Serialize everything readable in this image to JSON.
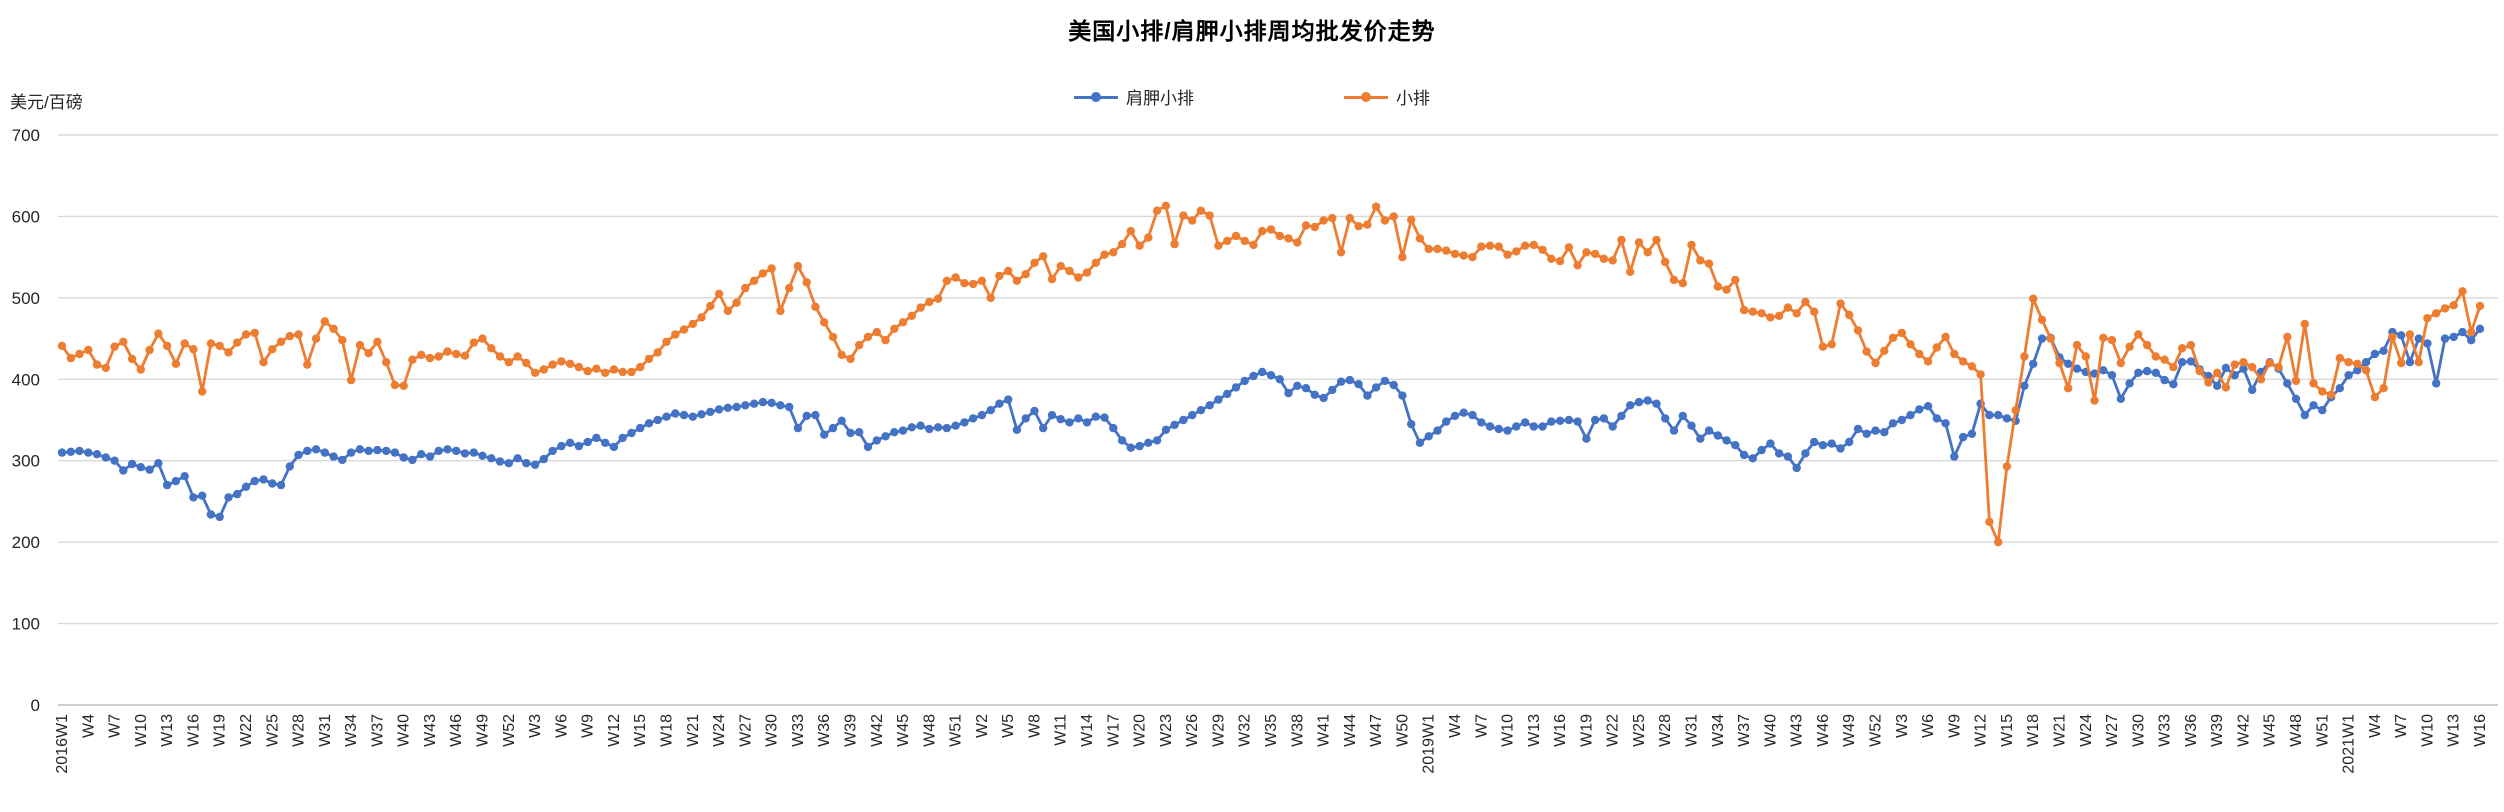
{
  "page": {
    "title": "美国小排/肩胛小排周均批发价走势",
    "unit_label": "美元/百磅"
  },
  "styles": {
    "series_blue": "#4472C4",
    "series_orange": "#ED7D31",
    "gridline": "#D9D9D9",
    "axis_line": "#BFBFBF",
    "label_text": "#262626",
    "title_text": "#000000"
  },
  "chart_data": {
    "type": "line",
    "title": "美国小排/肩胛小排周均批发价走势",
    "xlabel": "",
    "ylabel": "美元/百磅",
    "ylim": [
      0,
      700
    ],
    "y_ticks": [
      0,
      100,
      200,
      300,
      400,
      500,
      600,
      700
    ],
    "grid": true,
    "legend_position": "top-center",
    "x_label_every": 3,
    "x_labels": [
      "2016W1",
      "W4",
      "W7",
      "W10",
      "W13",
      "W16",
      "W19",
      "W22",
      "W25",
      "W28",
      "W31",
      "W34",
      "W37",
      "W40",
      "W43",
      "W46",
      "W49",
      "W52",
      "W3",
      "W6",
      "W9",
      "W12",
      "W15",
      "W18",
      "W21",
      "W24",
      "W27",
      "W30",
      "W33",
      "W36",
      "W39",
      "W42",
      "W45",
      "W48",
      "W51",
      "W2",
      "W5",
      "W8",
      "W11",
      "W14",
      "W17",
      "W20",
      "W23",
      "W26",
      "W29",
      "W32",
      "W35",
      "W38",
      "W41",
      "W44",
      "W47",
      "W50",
      "2019W1",
      "W4",
      "W7",
      "W10",
      "W13",
      "W16",
      "W19",
      "W22",
      "W25",
      "W28",
      "W31",
      "W34",
      "W37",
      "W40",
      "W43",
      "W46",
      "W49",
      "W52",
      "W3",
      "W6",
      "W9",
      "W12",
      "W15",
      "W18",
      "W21",
      "W24",
      "W27",
      "W30",
      "W33",
      "W36",
      "W39",
      "W42",
      "W45",
      "W48",
      "W51",
      "2021W1",
      "W4",
      "W7",
      "W10",
      "W13",
      "W16"
    ],
    "series": [
      {
        "name": "肩胛小排",
        "color": "#4472C4",
        "values": [
          310,
          311,
          312,
          310,
          308,
          304,
          300,
          288,
          296,
          292,
          289,
          297,
          270,
          275,
          281,
          255,
          257,
          234,
          231,
          255,
          259,
          268,
          275,
          277,
          272,
          270,
          293,
          307,
          312,
          314,
          310,
          305,
          301,
          310,
          314,
          312,
          313,
          312,
          310,
          304,
          301,
          308,
          305,
          312,
          314,
          312,
          309,
          310,
          306,
          303,
          299,
          297,
          303,
          297,
          295,
          302,
          312,
          318,
          322,
          318,
          323,
          328,
          322,
          317,
          328,
          334,
          340,
          346,
          350,
          354,
          358,
          356,
          354,
          357,
          360,
          363,
          365,
          366,
          368,
          370,
          372,
          371,
          368,
          366,
          340,
          355,
          356,
          332,
          340,
          349,
          334,
          335,
          317,
          325,
          330,
          335,
          337,
          341,
          343,
          339,
          341,
          340,
          343,
          347,
          352,
          356,
          362,
          370,
          375,
          338,
          352,
          361,
          340,
          356,
          351,
          347,
          352,
          347,
          354,
          353,
          340,
          325,
          316,
          318,
          322,
          325,
          338,
          344,
          350,
          356,
          362,
          368,
          375,
          382,
          390,
          398,
          404,
          409,
          405,
          400,
          383,
          392,
          389,
          381,
          377,
          387,
          397,
          399,
          394,
          380,
          390,
          398,
          393,
          380,
          345,
          322,
          330,
          337,
          348,
          355,
          359,
          356,
          347,
          342,
          339,
          337,
          342,
          347,
          342,
          342,
          348,
          349,
          350,
          348,
          327,
          350,
          352,
          342,
          355,
          368,
          372,
          374,
          370,
          352,
          337,
          355,
          343,
          327,
          337,
          331,
          325,
          319,
          307,
          303,
          313,
          321,
          309,
          305,
          291,
          309,
          323,
          319,
          321,
          315,
          323,
          339,
          333,
          337,
          335,
          346,
          350,
          356,
          363,
          367,
          352,
          346,
          305,
          329,
          333,
          370,
          356,
          356,
          352,
          349,
          392,
          419,
          450,
          451,
          427,
          419,
          413,
          409,
          407,
          411,
          405,
          376,
          395,
          408,
          410,
          408,
          399,
          394,
          421,
          422,
          412,
          404,
          392,
          414,
          405,
          413,
          387,
          409,
          421,
          413,
          395,
          376,
          356,
          368,
          362,
          378,
          389,
          405,
          411,
          421,
          431,
          435,
          458,
          454,
          421,
          450,
          444,
          395,
          450,
          452,
          458,
          448,
          462
        ]
      },
      {
        "name": "小排",
        "color": "#ED7D31",
        "values": [
          441,
          426,
          431,
          436,
          418,
          414,
          440,
          446,
          425,
          412,
          436,
          456,
          441,
          419,
          444,
          437,
          385,
          444,
          441,
          433,
          445,
          455,
          457,
          421,
          437,
          446,
          453,
          455,
          418,
          450,
          471,
          462,
          448,
          399,
          442,
          432,
          446,
          421,
          393,
          392,
          424,
          430,
          426,
          428,
          434,
          431,
          429,
          445,
          450,
          438,
          428,
          421,
          428,
          420,
          408,
          412,
          418,
          422,
          419,
          415,
          410,
          413,
          408,
          412,
          409,
          409,
          415,
          425,
          433,
          446,
          455,
          461,
          468,
          476,
          490,
          505,
          484,
          494,
          512,
          521,
          530,
          536,
          484,
          512,
          539,
          519,
          489,
          470,
          452,
          430,
          425,
          442,
          452,
          458,
          448,
          462,
          470,
          478,
          488,
          495,
          499,
          521,
          525,
          518,
          517,
          521,
          500,
          527,
          533,
          521,
          529,
          543,
          551,
          523,
          539,
          533,
          525,
          531,
          543,
          553,
          556,
          566,
          582,
          564,
          574,
          607,
          613,
          566,
          601,
          595,
          607,
          601,
          564,
          570,
          576,
          570,
          565,
          582,
          584,
          576,
          573,
          568,
          589,
          587,
          595,
          598,
          556,
          598,
          588,
          590,
          612,
          595,
          600,
          550,
          596,
          573,
          560,
          560,
          558,
          554,
          552,
          550,
          563,
          564,
          563,
          553,
          557,
          564,
          565,
          559,
          548,
          545,
          562,
          540,
          556,
          554,
          548,
          546,
          571,
          532,
          568,
          556,
          571,
          544,
          522,
          518,
          565,
          546,
          542,
          514,
          510,
          522,
          485,
          483,
          481,
          476,
          478,
          488,
          481,
          495,
          483,
          440,
          443,
          493,
          479,
          460,
          434,
          420,
          435,
          451,
          457,
          443,
          431,
          422,
          439,
          452,
          431,
          422,
          416,
          406,
          225,
          200,
          293,
          362,
          428,
          499,
          473,
          450,
          420,
          389,
          442,
          428,
          374,
          451,
          448,
          420,
          440,
          455,
          442,
          428,
          424,
          415,
          438,
          442,
          410,
          396,
          408,
          390,
          418,
          421,
          415,
          400,
          420,
          415,
          452,
          398,
          468,
          395,
          385,
          381,
          426,
          421,
          419,
          411,
          378,
          389,
          452,
          420,
          455,
          421,
          475,
          481,
          487,
          491,
          508,
          458,
          490
        ]
      }
    ]
  }
}
